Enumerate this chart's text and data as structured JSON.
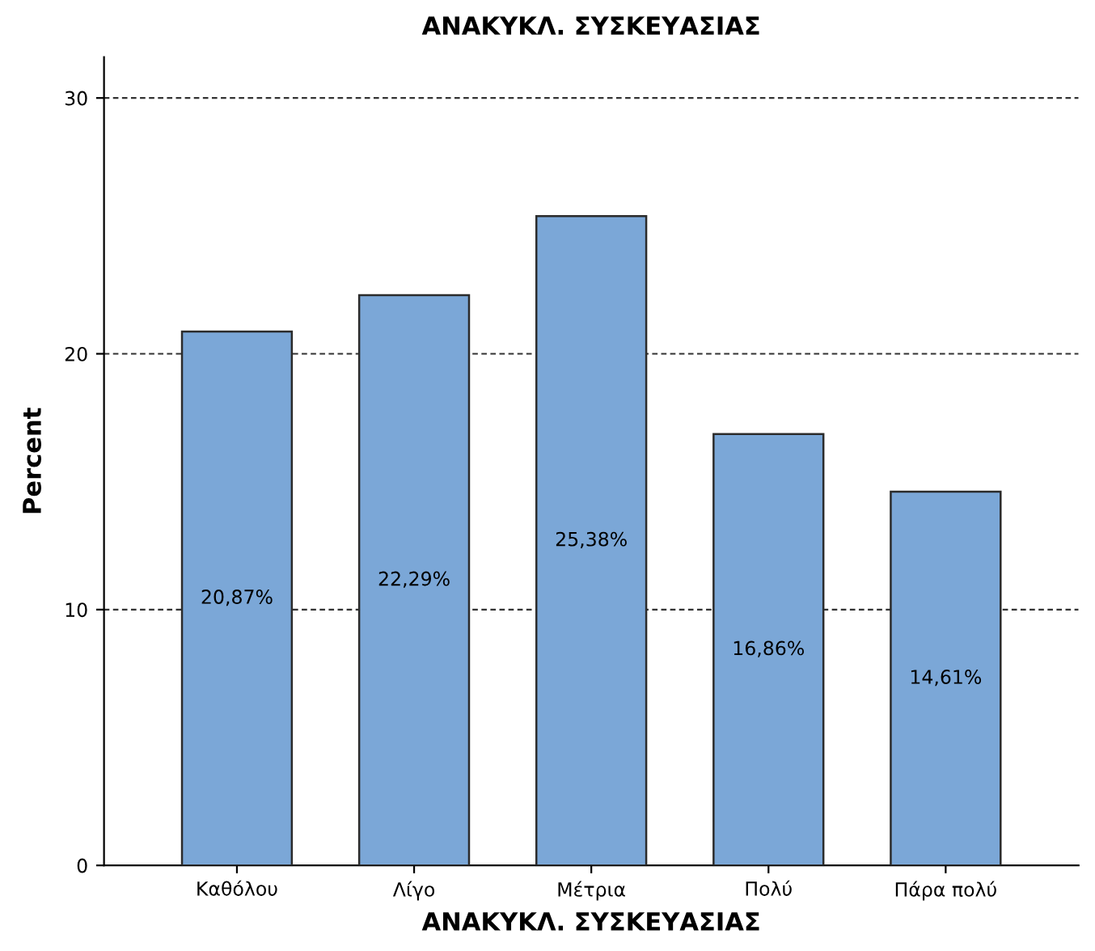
{
  "chart_data": {
    "type": "bar",
    "title": "ΑΝΑΚΥΚΛ. ΣΥΣΚΕΥΑΣΙΑΣ",
    "xlabel": "ΑΝΑΚΥΚΛ. ΣΥΣΚΕΥΑΣΙΑΣ",
    "ylabel": "Percent",
    "categories": [
      "Καθόλου",
      "Λίγο",
      "Μέτρια",
      "Πολύ",
      "Πάρα πολύ"
    ],
    "values": [
      20.87,
      22.29,
      25.38,
      16.86,
      14.61
    ],
    "value_labels": [
      "20,87%",
      "22,29%",
      "25,38%",
      "16,86%",
      "14,61%"
    ],
    "color": "#7ba7d7",
    "ylim": [
      0,
      31.6
    ],
    "yticks": [
      0,
      10,
      20,
      30
    ],
    "grid": "y"
  }
}
